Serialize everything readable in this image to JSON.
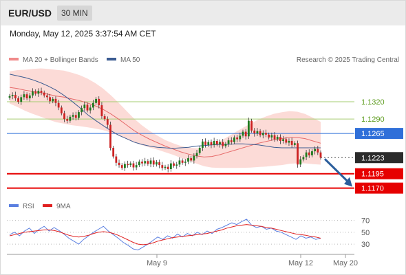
{
  "header": {
    "symbol": "EUR/USD",
    "timeframe": "30 MIN"
  },
  "datetime": "Monday, May 12, 2025 3:37:54 AM CET",
  "credit": "Research © 2025 Trading Central",
  "colors": {
    "bollinger": "#f08a8a",
    "ma50": "#3b5b91",
    "resistance": "#a6cc72",
    "pivot": "#2f6fd9",
    "support": "#e60000",
    "candle_up": "#1f7a1f",
    "candle_down": "#cc2222",
    "rsi": "#5a7fe0",
    "rsi_ma": "#e02020",
    "arrow": "#2b5e9c"
  },
  "chart_data": [
    {
      "type": "candlestick",
      "legend": [
        {
          "name": "MA 20 + Bollinger Bands"
        },
        {
          "name": "MA 50"
        }
      ],
      "x_ticks": [
        "May 9",
        "May 12",
        "May 20"
      ],
      "ylim": [
        1.116,
        1.1375
      ],
      "levels": [
        {
          "value": 1.132,
          "label": "1.1320",
          "kind": "resistance"
        },
        {
          "value": 1.129,
          "label": "1.1290",
          "kind": "resistance"
        },
        {
          "value": 1.1265,
          "label": "1.1265",
          "kind": "pivot"
        },
        {
          "value": 1.1223,
          "label": "1.1223",
          "kind": "last"
        },
        {
          "value": 1.1195,
          "label": "1.1195",
          "kind": "support"
        },
        {
          "value": 1.117,
          "label": "1.1170",
          "kind": "support"
        }
      ],
      "closes": [
        1.133,
        1.1332,
        1.1326,
        1.132,
        1.1328,
        1.1333,
        1.1326,
        1.1331,
        1.1338,
        1.1334,
        1.1339,
        1.1336,
        1.1331,
        1.1328,
        1.1321,
        1.1325,
        1.1318,
        1.131,
        1.13,
        1.129,
        1.1287,
        1.1294,
        1.1297,
        1.1292,
        1.1302,
        1.1309,
        1.1315,
        1.1305,
        1.131,
        1.1318,
        1.1325,
        1.1314,
        1.1295,
        1.129,
        1.128,
        1.124,
        1.1225,
        1.1214,
        1.121,
        1.1205,
        1.1212,
        1.121,
        1.1213,
        1.1206,
        1.121,
        1.1216,
        1.1213,
        1.1217,
        1.1212,
        1.1218,
        1.1211,
        1.1215,
        1.121,
        1.1205,
        1.1207,
        1.1203,
        1.1213,
        1.1209,
        1.1211,
        1.1218,
        1.1214,
        1.1216,
        1.1222,
        1.1218,
        1.1226,
        1.1231,
        1.124,
        1.1251,
        1.1245,
        1.125,
        1.1245,
        1.1252,
        1.1246,
        1.125,
        1.1243,
        1.1247,
        1.1253,
        1.125,
        1.1258,
        1.1255,
        1.1261,
        1.1268,
        1.126,
        1.1287,
        1.127,
        1.1265,
        1.1269,
        1.1262,
        1.1266,
        1.1263,
        1.1258,
        1.1262,
        1.1255,
        1.1259,
        1.1252,
        1.1255,
        1.1249,
        1.1252,
        1.1245,
        1.1248,
        1.1211,
        1.122,
        1.1224,
        1.1232,
        1.1227,
        1.1234,
        1.1238,
        1.1232,
        1.1223
      ],
      "ma20": [
        1.1345,
        1.1343,
        1.134,
        1.1338,
        1.1336,
        1.1333,
        1.133,
        1.1328,
        1.1325,
        1.1322,
        1.1318,
        1.1313,
        1.1307,
        1.1299,
        1.129,
        1.128,
        1.127,
        1.1262,
        1.1255,
        1.1249,
        1.1243,
        1.1238,
        1.1233,
        1.1229,
        1.1226,
        1.1224,
        1.1225,
        1.1228,
        1.1232,
        1.1236,
        1.124,
        1.1244,
        1.1248,
        1.1251,
        1.1254,
        1.1256,
        1.1258,
        1.1258,
        1.1256,
        1.1252,
        1.1248
      ],
      "ma50": [
        1.1368,
        1.1365,
        1.1362,
        1.1358,
        1.1353,
        1.1347,
        1.134,
        1.1331,
        1.1321,
        1.131,
        1.1298,
        1.1288,
        1.1279,
        1.127,
        1.1262,
        1.1256,
        1.125,
        1.1246,
        1.1243,
        1.1241,
        1.124,
        1.1239,
        1.124,
        1.1241,
        1.1243,
        1.1244,
        1.1245,
        1.1246,
        1.1246,
        1.1247,
        1.1247,
        1.1246,
        1.1245,
        1.1243,
        1.1241,
        1.124,
        1.124,
        1.124,
        1.124,
        1.124,
        1.124
      ],
      "projection": [
        1.1223,
        1.117
      ]
    },
    {
      "type": "line",
      "legend": [
        {
          "name": "RSI"
        },
        {
          "name": "9MA"
        }
      ],
      "y_ticks": [
        70,
        50,
        30
      ],
      "ylim": [
        15,
        80
      ],
      "series": [
        {
          "name": "RSI",
          "values": [
            46,
            50,
            44,
            52,
            57,
            48,
            55,
            60,
            52,
            58,
            53,
            47,
            40,
            35,
            30,
            38,
            44,
            50,
            55,
            60,
            52,
            46,
            40,
            33,
            28,
            22,
            20,
            25,
            30,
            36,
            42,
            38,
            44,
            40,
            47,
            42,
            48,
            44,
            50,
            46,
            52,
            48,
            55,
            58,
            62,
            66,
            63,
            68,
            72,
            62,
            58,
            60,
            55,
            57,
            52,
            50,
            46,
            42,
            38,
            44,
            40,
            42,
            38,
            40
          ]
        },
        {
          "name": "9MA",
          "values": [
            44,
            46,
            48,
            50,
            51,
            52,
            53,
            54,
            54,
            53,
            51,
            48,
            45,
            43,
            42,
            43,
            45,
            48,
            50,
            51,
            50,
            48,
            45,
            41,
            37,
            33,
            30,
            29,
            30,
            32,
            35,
            37,
            39,
            41,
            42,
            43,
            44,
            45,
            46,
            47,
            48,
            50,
            52,
            54,
            57,
            59,
            61,
            62,
            63,
            62,
            61,
            60,
            58,
            57,
            55,
            53,
            51,
            49,
            47,
            46,
            45,
            43,
            42,
            40
          ]
        }
      ]
    }
  ]
}
